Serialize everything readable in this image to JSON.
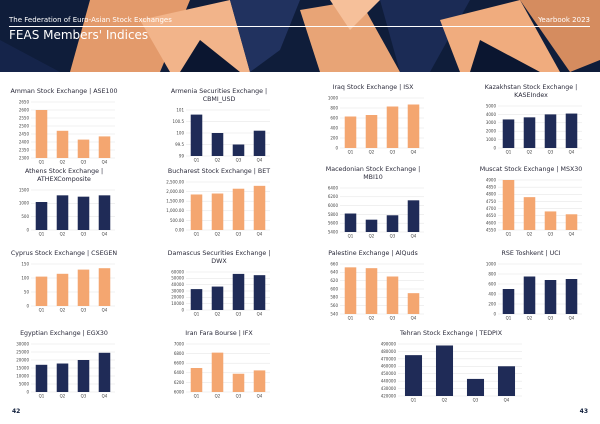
{
  "header": {
    "title": "The Federation of Euro-Asian Stock Exchanges",
    "year": "Yearbook 2023",
    "heading": "FEAS Members' Indices"
  },
  "page_numbers": {
    "left": "42",
    "right": "43"
  },
  "colors": {
    "peach": "#f4a670",
    "navy": "#1f2b57",
    "header_bg": "#0f1d3a",
    "grid": "#d9d9d9"
  },
  "chart_data": [
    {
      "type": "bar",
      "title": "Amman Stock Exchange | ASE100",
      "categories": [
        "Q1",
        "Q2",
        "Q3",
        "Q4"
      ],
      "values": [
        2600,
        2470,
        2415,
        2435
      ],
      "color": "peach",
      "ylim": [
        2300,
        2650
      ],
      "yticks": [
        "2650",
        "2600",
        "2550",
        "2500",
        "2450",
        "2400",
        "2350",
        "2300"
      ]
    },
    {
      "type": "bar",
      "title": "Armenia Securities Exchange | CBMI_USD",
      "categories": [
        "Q1",
        "Q2",
        "Q3",
        "Q4"
      ],
      "values": [
        100.8,
        100.0,
        99.5,
        100.1
      ],
      "color": "navy",
      "ylim": [
        99,
        101
      ],
      "yticks": [
        "101",
        "100.5",
        "100",
        "99.5",
        "99"
      ]
    },
    {
      "type": "bar",
      "title": "Iraq Stock Exchange | ISX",
      "categories": [
        "Q1",
        "Q2",
        "Q3",
        "Q4"
      ],
      "values": [
        630,
        660,
        830,
        870
      ],
      "color": "peach",
      "ylim": [
        0,
        1000
      ],
      "yticks": [
        "1000",
        "800",
        "600",
        "400",
        "200",
        "0"
      ]
    },
    {
      "type": "bar",
      "title": "Kazakhstan Stock Exchange | KASEIndex",
      "categories": [
        "Q1",
        "Q2",
        "Q3",
        "Q4"
      ],
      "values": [
        3400,
        3650,
        4000,
        4100
      ],
      "color": "navy",
      "ylim": [
        0,
        5000
      ],
      "yticks": [
        "5000",
        "4000",
        "3000",
        "2000",
        "1000",
        "0"
      ]
    },
    {
      "type": "bar",
      "title": "Athens Stock Exchange | ATHEXComposite",
      "categories": [
        "Q1",
        "Q2",
        "Q3",
        "Q4"
      ],
      "values": [
        1050,
        1300,
        1250,
        1300
      ],
      "color": "navy",
      "ylim": [
        0,
        1500
      ],
      "yticks": [
        "1500",
        "1000",
        "500",
        "0"
      ]
    },
    {
      "type": "bar",
      "title": "Bucharest Stock Exchange | BET",
      "categories": [
        "Q1",
        "Q2",
        "Q3",
        "Q4"
      ],
      "values": [
        1850,
        1900,
        2150,
        2300
      ],
      "color": "peach",
      "ylim": [
        0,
        2500
      ],
      "yticks": [
        "2,500.00",
        "2,000.00",
        "1,500.00",
        "1,000.00",
        "500.00",
        "0.00"
      ]
    },
    {
      "type": "bar",
      "title": "Macedonian Stock Exchange | MBI10",
      "categories": [
        "Q1",
        "Q2",
        "Q3",
        "Q4"
      ],
      "values": [
        5820,
        5680,
        5780,
        6120
      ],
      "color": "navy",
      "ylim": [
        5400,
        6400
      ],
      "yticks": [
        "6400",
        "6200",
        "6000",
        "5800",
        "5600",
        "5400"
      ]
    },
    {
      "type": "bar",
      "title": "Muscat Stock Exchange | MSX30",
      "categories": [
        "Q1",
        "Q2",
        "Q3",
        "Q4"
      ],
      "values": [
        4900,
        4780,
        4680,
        4660
      ],
      "color": "peach",
      "ylim": [
        4550,
        4900
      ],
      "yticks": [
        "4900",
        "4850",
        "4800",
        "4750",
        "4700",
        "4650",
        "4600",
        "4550"
      ]
    },
    {
      "type": "bar",
      "title": "Cyprus Stock Exchange | CSEGEN",
      "categories": [
        "Q1",
        "Q2",
        "Q3",
        "Q4"
      ],
      "values": [
        105,
        115,
        130,
        135
      ],
      "color": "peach",
      "ylim": [
        0,
        150
      ],
      "yticks": [
        "150",
        "100",
        "50",
        "0"
      ]
    },
    {
      "type": "bar",
      "title": "Damascus Securities Exchange | DWX",
      "categories": [
        "Q1",
        "Q2",
        "Q3",
        "Q4"
      ],
      "values": [
        33000,
        37000,
        57000,
        55000
      ],
      "color": "navy",
      "ylim": [
        0,
        60000
      ],
      "yticks": [
        "60000",
        "50000",
        "40000",
        "30000",
        "20000",
        "10000",
        "0"
      ]
    },
    {
      "type": "bar",
      "title": "Palestine Exchange | AlQuds",
      "categories": [
        "Q1",
        "Q2",
        "Q3",
        "Q4"
      ],
      "values": [
        652,
        650,
        630,
        590
      ],
      "color": "peach",
      "ylim": [
        540,
        660
      ],
      "yticks": [
        "660",
        "640",
        "620",
        "600",
        "580",
        "560",
        "540"
      ]
    },
    {
      "type": "bar",
      "title": "RSE Toshkent | UCI",
      "categories": [
        "Q1",
        "Q2",
        "Q3",
        "Q4"
      ],
      "values": [
        500,
        750,
        680,
        700
      ],
      "color": "navy",
      "ylim": [
        0,
        1000
      ],
      "yticks": [
        "1000",
        "800",
        "600",
        "400",
        "200",
        "0"
      ]
    },
    {
      "type": "bar",
      "title": "Egyptian Exchange | EGX30",
      "categories": [
        "Q1",
        "Q2",
        "Q3",
        "Q4"
      ],
      "values": [
        17000,
        17800,
        20000,
        24500
      ],
      "color": "navy",
      "ylim": [
        0,
        30000
      ],
      "yticks": [
        "30000",
        "25000",
        "20000",
        "15000",
        "10000",
        "5000",
        "0"
      ]
    },
    {
      "type": "bar",
      "title": "Iran Fara Bourse | IFX",
      "categories": [
        "Q1",
        "Q2",
        "Q3",
        "Q4"
      ],
      "values": [
        6500,
        6820,
        6380,
        6450
      ],
      "color": "peach",
      "ylim": [
        6000,
        7000
      ],
      "yticks": [
        "7000",
        "6800",
        "6600",
        "6400",
        "6200",
        "6000"
      ]
    },
    {
      "type": "bar",
      "title": "Tehran Stock Exchange | TEDPIX",
      "categories": [
        "Q1",
        "Q2",
        "Q3",
        "Q4"
      ],
      "values": [
        475000,
        488000,
        443000,
        460000
      ],
      "color": "navy",
      "ylim": [
        420000,
        490000
      ],
      "yticks": [
        "490000",
        "480000",
        "470000",
        "460000",
        "450000",
        "440000",
        "430000",
        "420000"
      ]
    }
  ]
}
